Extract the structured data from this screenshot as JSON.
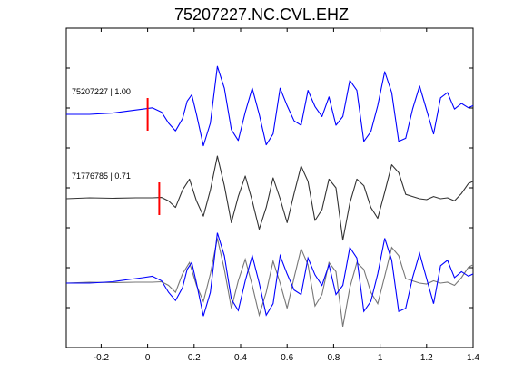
{
  "chart_data": {
    "type": "line",
    "title": "75207227.NC.CVL.EHZ",
    "xlabel": "",
    "ylabel": "",
    "xlim": [
      -0.35,
      1.4
    ],
    "xticks": [
      -0.2,
      0,
      0.2,
      0.4,
      0.6,
      0.8,
      1,
      1.2,
      1.4
    ],
    "xtick_labels": [
      "-0.2",
      "0",
      "0.2",
      "0.4",
      "0.6",
      "0.8",
      "1",
      "1.2",
      "1.4"
    ],
    "grid": false,
    "colors": {
      "target": "#0000ff",
      "match": "#333333",
      "overlay_match": "#777777",
      "pick": "#ff0000",
      "axes": "#000000"
    },
    "traces": [
      {
        "label": "75207227 | 1.00",
        "pick_time": 0.0,
        "color": "#0000ff",
        "x": [
          -0.35,
          -0.25,
          -0.15,
          -0.08,
          -0.02,
          0.02,
          0.06,
          0.09,
          0.12,
          0.15,
          0.17,
          0.19,
          0.21,
          0.24,
          0.27,
          0.3,
          0.33,
          0.36,
          0.39,
          0.42,
          0.45,
          0.48,
          0.51,
          0.54,
          0.57,
          0.6,
          0.63,
          0.66,
          0.69,
          0.72,
          0.75,
          0.78,
          0.81,
          0.84,
          0.87,
          0.9,
          0.93,
          0.96,
          0.99,
          1.02,
          1.05,
          1.08,
          1.11,
          1.14,
          1.17,
          1.2,
          1.23,
          1.26,
          1.29,
          1.32,
          1.35,
          1.38,
          1.4
        ],
        "y": [
          0,
          0,
          0.03,
          0.08,
          0.12,
          0.15,
          0.05,
          -0.2,
          -0.38,
          -0.1,
          0.3,
          0.45,
          0.0,
          -0.72,
          -0.2,
          1.1,
          0.6,
          -0.35,
          -0.6,
          0.05,
          0.6,
          0.0,
          -0.7,
          -0.45,
          0.6,
          0.2,
          -0.15,
          -0.25,
          0.55,
          0.18,
          -0.05,
          0.4,
          -0.25,
          -0.05,
          0.78,
          0.55,
          -0.62,
          -0.4,
          0.2,
          0.98,
          0.5,
          -0.62,
          -0.55,
          0.12,
          0.65,
          0.1,
          -0.45,
          0.38,
          0.5,
          0.12,
          0.25,
          0.15,
          0.2
        ]
      },
      {
        "label": "71776785 | 0.71",
        "pick_time": 0.05,
        "color": "#333333",
        "x": [
          -0.35,
          -0.25,
          -0.15,
          -0.05,
          0.02,
          0.06,
          0.09,
          0.12,
          0.15,
          0.18,
          0.21,
          0.24,
          0.27,
          0.3,
          0.33,
          0.36,
          0.39,
          0.42,
          0.45,
          0.48,
          0.51,
          0.54,
          0.57,
          0.6,
          0.63,
          0.66,
          0.69,
          0.72,
          0.75,
          0.78,
          0.81,
          0.84,
          0.87,
          0.9,
          0.93,
          0.96,
          0.99,
          1.02,
          1.05,
          1.08,
          1.11,
          1.14,
          1.17,
          1.2,
          1.23,
          1.26,
          1.29,
          1.32,
          1.35,
          1.38,
          1.4
        ],
        "y": [
          0,
          0.02,
          0.01,
          0.02,
          0.02,
          0.03,
          -0.05,
          -0.2,
          0.2,
          0.45,
          -0.05,
          -0.4,
          0.2,
          0.98,
          0.3,
          -0.55,
          0.05,
          0.52,
          -0.05,
          -0.7,
          -0.2,
          0.48,
          0.0,
          -0.55,
          0.12,
          0.75,
          0.4,
          -0.5,
          -0.25,
          0.45,
          0.25,
          -0.95,
          -0.1,
          0.45,
          0.3,
          -0.2,
          -0.45,
          0.15,
          0.78,
          0.6,
          0.1,
          0.05,
          0.0,
          -0.02,
          0.05,
          0.0,
          0.02,
          -0.05,
          0.12,
          0.35,
          0.4
        ]
      }
    ],
    "overlay": {
      "description_from_traces": true
    }
  }
}
